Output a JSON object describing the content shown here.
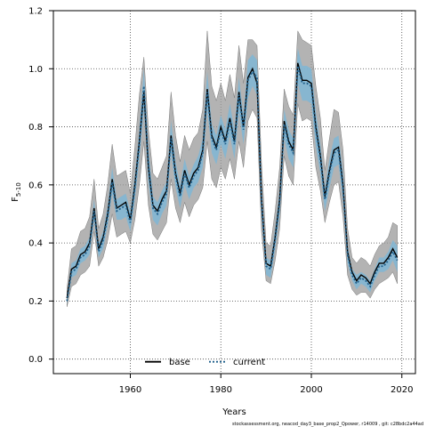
{
  "chart_data": {
    "type": "line",
    "xlabel": "Years",
    "ylabel_main": "F",
    "ylabel_sub": "5-10",
    "xlim": [
      1943,
      2023
    ],
    "ylim": [
      -0.05,
      1.2
    ],
    "xticks": [
      1960,
      1980,
      2000,
      2020
    ],
    "yticks": [
      0.0,
      0.2,
      0.4,
      0.6,
      0.8,
      1.0,
      1.2
    ],
    "grid": true,
    "legend_position": "bottom-center",
    "x": [
      1946,
      1947,
      1948,
      1949,
      1950,
      1951,
      1952,
      1953,
      1954,
      1955,
      1956,
      1957,
      1958,
      1959,
      1960,
      1961,
      1962,
      1963,
      1964,
      1965,
      1966,
      1967,
      1968,
      1969,
      1970,
      1971,
      1972,
      1973,
      1974,
      1975,
      1976,
      1977,
      1978,
      1979,
      1980,
      1981,
      1982,
      1983,
      1984,
      1985,
      1986,
      1987,
      1988,
      1989,
      1990,
      1991,
      1992,
      1993,
      1994,
      1995,
      1996,
      1997,
      1998,
      1999,
      2000,
      2001,
      2002,
      2003,
      2004,
      2005,
      2006,
      2007,
      2008,
      2009,
      2010,
      2011,
      2012,
      2013,
      2014,
      2015,
      2016,
      2017,
      2018,
      2019
    ],
    "series": [
      {
        "name": "base",
        "color": "#000000",
        "dash": "solid",
        "values": [
          0.21,
          0.31,
          0.32,
          0.36,
          0.37,
          0.4,
          0.52,
          0.38,
          0.42,
          0.5,
          0.62,
          0.52,
          0.53,
          0.54,
          0.48,
          0.6,
          0.75,
          0.92,
          0.66,
          0.53,
          0.51,
          0.55,
          0.58,
          0.77,
          0.64,
          0.57,
          0.65,
          0.6,
          0.64,
          0.66,
          0.72,
          0.93,
          0.77,
          0.73,
          0.8,
          0.75,
          0.83,
          0.75,
          0.92,
          0.8,
          0.97,
          1.0,
          0.95,
          0.55,
          0.33,
          0.32,
          0.42,
          0.55,
          0.82,
          0.75,
          0.72,
          1.02,
          0.96,
          0.96,
          0.95,
          0.8,
          0.7,
          0.56,
          0.65,
          0.72,
          0.73,
          0.6,
          0.37,
          0.3,
          0.27,
          0.29,
          0.28,
          0.26,
          0.3,
          0.33,
          0.33,
          0.35,
          0.38,
          0.35
        ]
      },
      {
        "name": "current",
        "color": "#1f5f8b",
        "dash": "dotted",
        "values": [
          0.2,
          0.3,
          0.31,
          0.35,
          0.36,
          0.39,
          0.51,
          0.37,
          0.41,
          0.49,
          0.61,
          0.51,
          0.52,
          0.53,
          0.47,
          0.59,
          0.74,
          0.94,
          0.67,
          0.52,
          0.5,
          0.54,
          0.57,
          0.76,
          0.63,
          0.56,
          0.64,
          0.59,
          0.63,
          0.65,
          0.71,
          0.92,
          0.76,
          0.72,
          0.79,
          0.74,
          0.82,
          0.74,
          0.91,
          0.79,
          0.96,
          0.99,
          0.97,
          0.54,
          0.32,
          0.31,
          0.41,
          0.54,
          0.81,
          0.74,
          0.71,
          1.01,
          0.95,
          0.95,
          0.94,
          0.79,
          0.69,
          0.55,
          0.64,
          0.71,
          0.72,
          0.59,
          0.36,
          0.29,
          0.26,
          0.28,
          0.27,
          0.25,
          0.29,
          0.32,
          0.32,
          0.34,
          0.37,
          0.34
        ]
      }
    ],
    "bands": [
      {
        "name": "base uncertainty",
        "color": "#9a9a9a",
        "lower": [
          0.18,
          0.25,
          0.26,
          0.29,
          0.3,
          0.32,
          0.44,
          0.32,
          0.35,
          0.41,
          0.5,
          0.42,
          0.43,
          0.44,
          0.4,
          0.48,
          0.6,
          0.75,
          0.53,
          0.43,
          0.41,
          0.44,
          0.47,
          0.62,
          0.52,
          0.47,
          0.54,
          0.49,
          0.53,
          0.55,
          0.59,
          0.75,
          0.62,
          0.59,
          0.66,
          0.62,
          0.69,
          0.62,
          0.75,
          0.66,
          0.82,
          0.86,
          0.83,
          0.44,
          0.27,
          0.26,
          0.34,
          0.45,
          0.7,
          0.63,
          0.6,
          0.88,
          0.82,
          0.83,
          0.82,
          0.66,
          0.58,
          0.47,
          0.54,
          0.6,
          0.61,
          0.49,
          0.29,
          0.24,
          0.22,
          0.23,
          0.23,
          0.21,
          0.24,
          0.26,
          0.27,
          0.28,
          0.3,
          0.26
        ],
        "upper": [
          0.24,
          0.38,
          0.39,
          0.44,
          0.45,
          0.49,
          0.62,
          0.45,
          0.5,
          0.6,
          0.74,
          0.63,
          0.64,
          0.65,
          0.57,
          0.73,
          0.91,
          1.04,
          0.79,
          0.64,
          0.62,
          0.66,
          0.7,
          0.92,
          0.77,
          0.68,
          0.77,
          0.72,
          0.76,
          0.78,
          0.86,
          1.13,
          0.94,
          0.89,
          0.95,
          0.89,
          0.98,
          0.9,
          1.08,
          0.95,
          1.1,
          1.1,
          1.08,
          0.67,
          0.4,
          0.39,
          0.51,
          0.66,
          0.93,
          0.87,
          0.84,
          1.13,
          1.1,
          1.09,
          1.08,
          0.94,
          0.83,
          0.65,
          0.76,
          0.86,
          0.85,
          0.72,
          0.45,
          0.35,
          0.33,
          0.35,
          0.34,
          0.32,
          0.36,
          0.39,
          0.4,
          0.42,
          0.47,
          0.46
        ]
      },
      {
        "name": "current uncertainty",
        "color": "#7fb6d5",
        "lower": [
          0.19,
          0.28,
          0.29,
          0.33,
          0.34,
          0.36,
          0.48,
          0.35,
          0.38,
          0.46,
          0.57,
          0.48,
          0.48,
          0.49,
          0.44,
          0.55,
          0.69,
          0.86,
          0.61,
          0.48,
          0.46,
          0.5,
          0.53,
          0.71,
          0.59,
          0.52,
          0.6,
          0.55,
          0.59,
          0.61,
          0.66,
          0.86,
          0.71,
          0.67,
          0.74,
          0.69,
          0.77,
          0.69,
          0.85,
          0.74,
          0.9,
          0.94,
          0.91,
          0.5,
          0.29,
          0.28,
          0.38,
          0.5,
          0.76,
          0.69,
          0.66,
          0.95,
          0.89,
          0.89,
          0.88,
          0.73,
          0.64,
          0.51,
          0.59,
          0.66,
          0.67,
          0.55,
          0.33,
          0.27,
          0.24,
          0.26,
          0.25,
          0.23,
          0.27,
          0.3,
          0.3,
          0.31,
          0.34,
          0.3
        ],
        "upper": [
          0.22,
          0.33,
          0.34,
          0.38,
          0.39,
          0.42,
          0.55,
          0.4,
          0.44,
          0.53,
          0.66,
          0.55,
          0.56,
          0.57,
          0.51,
          0.63,
          0.79,
          1.0,
          0.72,
          0.56,
          0.54,
          0.58,
          0.61,
          0.82,
          0.68,
          0.6,
          0.69,
          0.63,
          0.67,
          0.7,
          0.76,
          0.99,
          0.81,
          0.77,
          0.84,
          0.79,
          0.88,
          0.79,
          0.97,
          0.84,
          1.03,
          1.05,
          1.03,
          0.58,
          0.35,
          0.34,
          0.45,
          0.58,
          0.86,
          0.79,
          0.76,
          1.07,
          1.01,
          1.01,
          1.0,
          0.85,
          0.74,
          0.59,
          0.69,
          0.76,
          0.77,
          0.64,
          0.39,
          0.31,
          0.29,
          0.3,
          0.29,
          0.27,
          0.31,
          0.35,
          0.35,
          0.37,
          0.41,
          0.39
        ]
      }
    ],
    "footnote": "stockassessment.org, neacod_day3_base_prop2_Qpower, r14009 , git: c28bdc2a44ad"
  }
}
